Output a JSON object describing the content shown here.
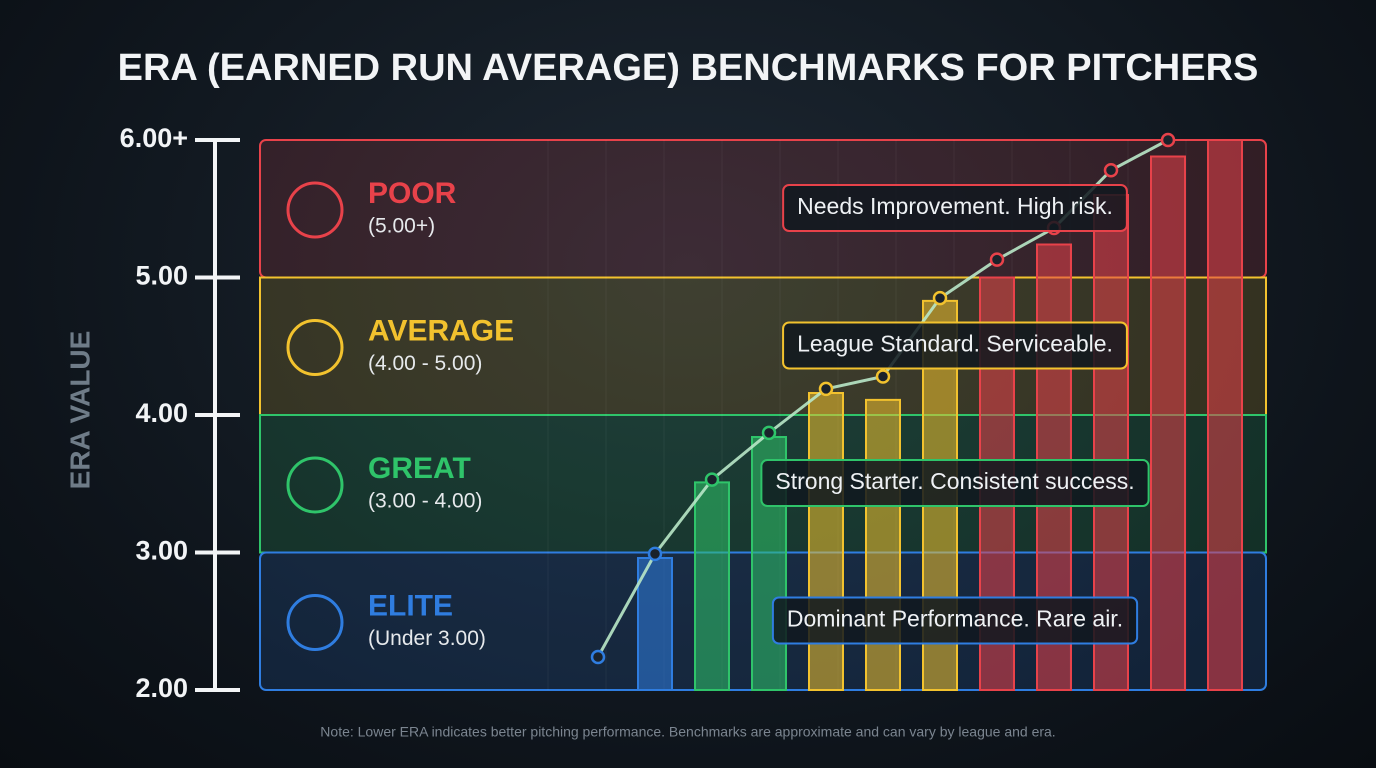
{
  "title": "ERA (EARNED RUN AVERAGE) BENCHMARKS FOR PITCHERS",
  "chart_data": {
    "type": "bar_line",
    "y_label": "ERA VALUE",
    "ylim": [
      2,
      6
    ],
    "yticks": [
      {
        "value": 2,
        "label": "2.00"
      },
      {
        "value": 3,
        "label": "3.00"
      },
      {
        "value": 4,
        "label": "4.00"
      },
      {
        "value": 5,
        "label": "5.00"
      },
      {
        "value": 6,
        "label": "6.00+"
      }
    ],
    "bands": [
      {
        "name": "POOR",
        "range": "(5.00+)",
        "from": 5,
        "to": 6,
        "color": "#e8424a",
        "note": "Needs Improvement. High risk."
      },
      {
        "name": "AVERAGE",
        "range": "(4.00 - 5.00)",
        "from": 4,
        "to": 5,
        "color": "#f2c22e",
        "note": "League Standard. Serviceable."
      },
      {
        "name": "GREAT",
        "range": "(3.00 - 4.00)",
        "from": 3,
        "to": 4,
        "color": "#2fc46a",
        "note": "Strong Starter. Consistent success."
      },
      {
        "name": "ELITE",
        "range": "(Under 3.00)",
        "from": 2,
        "to": 3,
        "color": "#2f7de0",
        "note": "Dominant Performance. Rare air."
      }
    ],
    "categories": [
      null,
      null,
      null,
      null,
      null,
      null,
      null,
      null,
      null,
      null,
      null,
      null
    ],
    "bars": {
      "values": [
        null,
        2.96,
        3.51,
        3.84,
        4.16,
        4.11,
        4.83,
        5.0,
        5.24,
        5.6,
        5.88,
        6.0
      ]
    },
    "line": {
      "values": [
        2.24,
        2.99,
        3.53,
        3.87,
        4.19,
        4.28,
        4.85,
        5.13,
        5.36,
        5.78,
        6.0,
        null
      ]
    },
    "footnote": "Note: Lower ERA indicates better pitching performance. Benchmarks are approximate and can vary by league and era."
  }
}
